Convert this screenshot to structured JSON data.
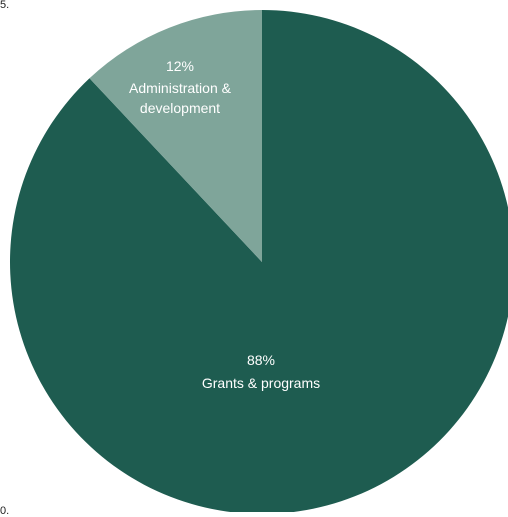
{
  "edge_text": {
    "top": "5.",
    "bottom": "0."
  },
  "colors": {
    "grants": "#1e5c50",
    "admin": "#7fa59a",
    "label": "#ffffff"
  },
  "chart_data": {
    "type": "pie",
    "start": "12 o'clock",
    "direction": "clockwise",
    "slices": [
      {
        "label": "Grants & programs",
        "value": 88,
        "value_label": "88%"
      },
      {
        "label": "Administration & development",
        "label_lines": [
          "Administration &",
          "development"
        ],
        "value": 12,
        "value_label": "12%"
      }
    ]
  }
}
